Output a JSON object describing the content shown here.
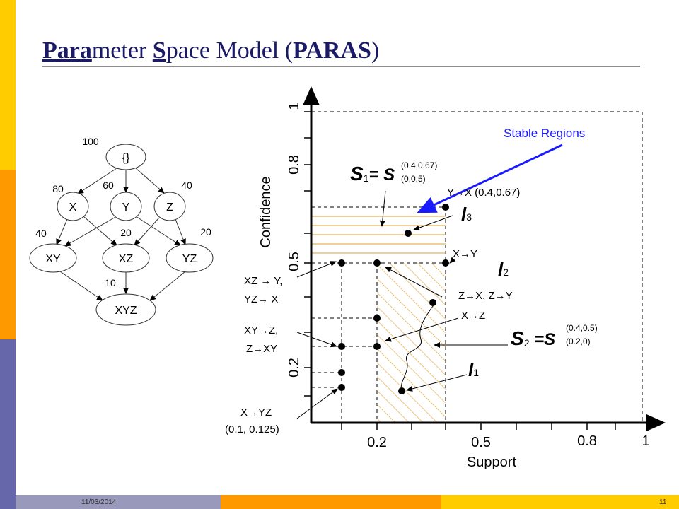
{
  "slide": {
    "title": {
      "part1": "Para",
      "part2": "meter ",
      "part3": "S",
      "part4": "pace Model (",
      "part5": "PARAS",
      "part6": ")"
    },
    "lattice": {
      "nodes": [
        {
          "label": "{}"
        },
        {
          "label": "X"
        },
        {
          "label": "Y"
        },
        {
          "label": "Z"
        },
        {
          "label": "XY"
        },
        {
          "label": "XZ"
        },
        {
          "label": "YZ"
        },
        {
          "label": "XYZ"
        }
      ],
      "counts": [
        "100",
        "80",
        "60",
        "40",
        "40",
        "20",
        "20",
        "10"
      ]
    },
    "plot": {
      "x_label": "Support",
      "y_label": "Confidence",
      "x_ticks": [
        "0.2",
        "0.5",
        "0.8",
        "1"
      ],
      "y_ticks": [
        "1",
        "0.8",
        "0.5",
        "0.2"
      ],
      "annotations": {
        "stable": "Stable Regions",
        "s1": "S",
        "s1_sub": "1",
        "s1_eq": "= S",
        "s1_sup": "(0.4,0.67)",
        "s1_low": "(0,0.5)",
        "s2": "S",
        "s2_sub": "2",
        "s2_eq": " =S",
        "s2_sup": "(0.4,0.5)",
        "s2_low": "(0.2,0)",
        "yx": "Y→X (0.4,0.67)",
        "xy": "X→Y",
        "zx": "Z→X, Z→Y",
        "xz": "X→Z",
        "l3": "l",
        "l3_sub": "3",
        "l2": "l",
        "l2_sub": "2",
        "l1": "l",
        "l1_sub": "1",
        "xzy": "XZ → Y,",
        "yzx": "YZ→ X",
        "xyz": "XY→Z,",
        "zxy": "Z→XY",
        "x_yz": "X→YZ",
        "x_yz_val": "(0.1, 0.125)"
      }
    },
    "footer": {
      "date": "11/03/2014",
      "page": "11"
    }
  }
}
